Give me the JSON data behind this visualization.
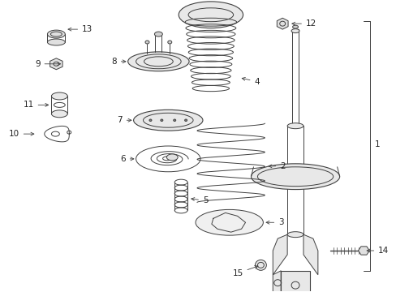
{
  "background_color": "#ffffff",
  "line_color": "#404040",
  "figsize": [
    4.89,
    3.6
  ],
  "dpi": 100,
  "lw": 0.7
}
